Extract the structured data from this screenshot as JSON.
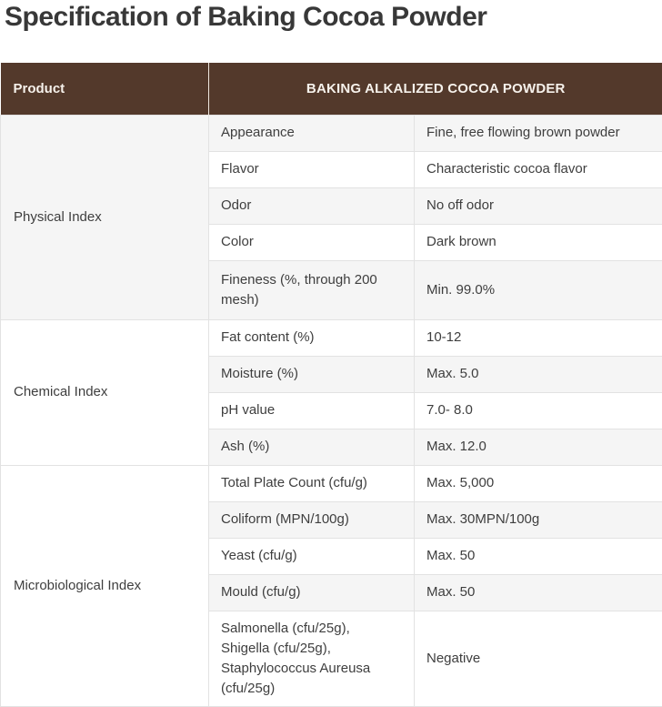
{
  "page": {
    "title": "Specification of Baking Cocoa Powder"
  },
  "colors": {
    "header_bg": "#53392b",
    "header_text": "#f6f1eb",
    "header_divider": "#efe7df",
    "stripe": "#f5f5f5",
    "border": "#e2e2e2",
    "body_text": "#3e3e3e",
    "title_text": "#383838"
  },
  "table": {
    "header": {
      "product_label": "Product",
      "product_value": "BAKING ALKALIZED COCOA POWDER"
    },
    "sections": [
      {
        "category": "Physical Index",
        "rows": [
          {
            "attr": "Appearance",
            "value": "Fine, free flowing brown powder"
          },
          {
            "attr": "Flavor",
            "value": "Characteristic cocoa flavor"
          },
          {
            "attr": "Odor",
            "value": "No off odor"
          },
          {
            "attr": "Color",
            "value": "Dark brown"
          },
          {
            "attr": "Fineness (%, through 200 mesh)",
            "value": "Min. 99.0%"
          }
        ]
      },
      {
        "category": "Chemical Index",
        "rows": [
          {
            "attr": "Fat content (%)",
            "value": "10-12"
          },
          {
            "attr": "Moisture (%)",
            "value": "Max. 5.0"
          },
          {
            "attr": "pH value",
            "value": "7.0- 8.0"
          },
          {
            "attr": "Ash (%)",
            "value": "Max. 12.0"
          }
        ]
      },
      {
        "category": "Microbiological Index",
        "rows": [
          {
            "attr": "Total Plate Count (cfu/g)",
            "value": "Max. 5,000"
          },
          {
            "attr": "Coliform (MPN/100g)",
            "value": "Max. 30MPN/100g"
          },
          {
            "attr": "Yeast (cfu/g)",
            "value": "Max. 50"
          },
          {
            "attr": "Mould (cfu/g)",
            "value": "Max. 50"
          },
          {
            "attr": "Salmonella (cfu/25g), Shigella (cfu/25g), Staphylococcus Aureusa (cfu/25g)",
            "value": "Negative"
          }
        ]
      }
    ]
  }
}
